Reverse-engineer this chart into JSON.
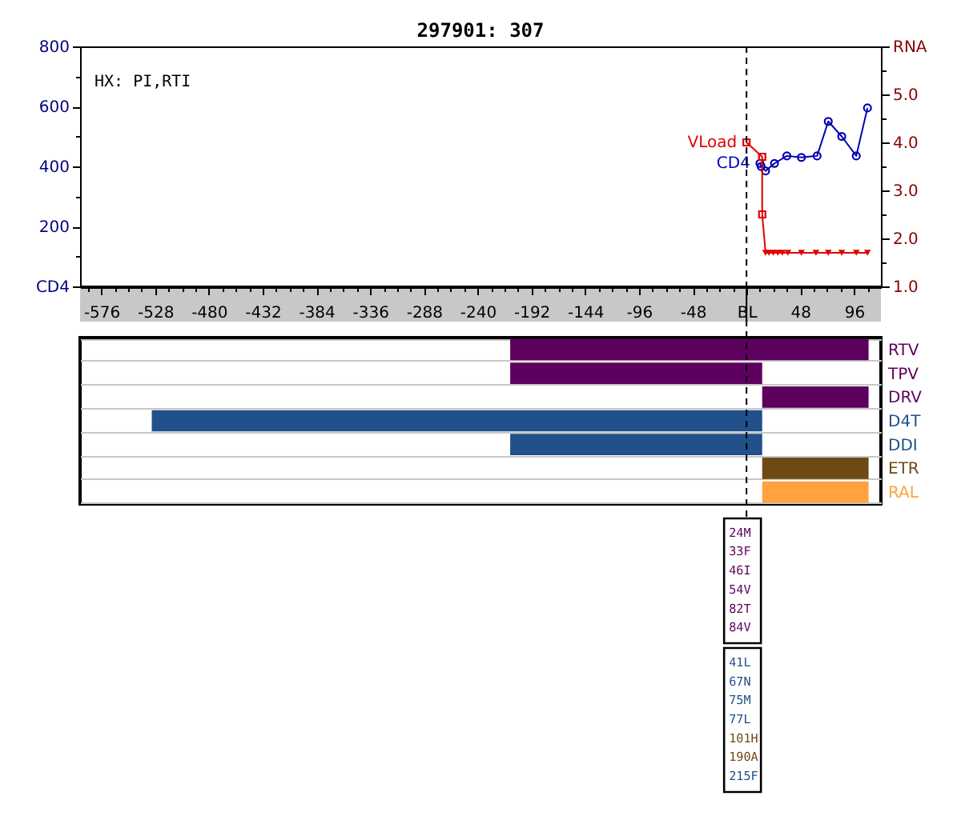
{
  "chart_data": [
    {
      "type": "line",
      "title": "297901: 307",
      "annotations": [
        "HX: PI,RTI"
      ],
      "xlim": [
        -595,
        120
      ],
      "xticks": [
        {
          "value": -588,
          "label": null
        },
        -576,
        {
          "value": -564,
          "label": null
        },
        {
          "value": -552,
          "label": null
        },
        {
          "value": -540,
          "label": null
        },
        -528,
        {
          "value": -516,
          "label": null
        },
        {
          "value": -504,
          "label": null
        },
        {
          "value": -492,
          "label": null
        },
        -480,
        {
          "value": -468,
          "label": null
        },
        {
          "value": -456,
          "label": null
        },
        {
          "value": -444,
          "label": null
        },
        -432,
        {
          "value": -420,
          "label": null
        },
        {
          "value": -408,
          "label": null
        },
        {
          "value": -396,
          "label": null
        },
        -384,
        {
          "value": -372,
          "label": null
        },
        {
          "value": -360,
          "label": null
        },
        {
          "value": -348,
          "label": null
        },
        -336,
        {
          "value": -324,
          "label": null
        },
        {
          "value": -312,
          "label": null
        },
        {
          "value": -300,
          "label": null
        },
        -288,
        {
          "value": -276,
          "label": null
        },
        {
          "value": -264,
          "label": null
        },
        {
          "value": -252,
          "label": null
        },
        -240,
        {
          "value": -228,
          "label": null
        },
        {
          "value": -216,
          "label": null
        },
        {
          "value": -204,
          "label": null
        },
        -192,
        {
          "value": -180,
          "label": null
        },
        {
          "value": -168,
          "label": null
        },
        {
          "value": -156,
          "label": null
        },
        -144,
        {
          "value": -132,
          "label": null
        },
        {
          "value": -120,
          "label": null
        },
        {
          "value": -108,
          "label": null
        },
        -96,
        {
          "value": -84,
          "label": null
        },
        {
          "value": -72,
          "label": null
        },
        {
          "value": -60,
          "label": null
        },
        -48,
        {
          "value": -36,
          "label": null
        },
        {
          "value": -24,
          "label": null
        },
        {
          "value": -12,
          "label": null
        },
        {
          "value": 0,
          "label": "BL"
        },
        {
          "value": 12,
          "label": null
        },
        {
          "value": 24,
          "label": null
        },
        {
          "value": 36,
          "label": null
        },
        48,
        {
          "value": 60,
          "label": null
        },
        {
          "value": 72,
          "label": null
        },
        {
          "value": 84,
          "label": null
        },
        96,
        {
          "value": 108,
          "label": null
        }
      ],
      "ylim": [
        0,
        800
      ],
      "yticks": [
        {
          "value": 0,
          "label": "CD4"
        },
        {
          "value": 100,
          "label": null
        },
        200,
        {
          "value": 300,
          "label": null
        },
        400,
        {
          "value": 500,
          "label": null
        },
        600,
        {
          "value": 700,
          "label": null
        },
        800
      ],
      "y2lim": [
        1,
        6
      ],
      "y2ticks": [
        {
          "value": 1,
          "label": "1.0"
        },
        {
          "value": 1.5,
          "label": null
        },
        {
          "value": 2,
          "label": "2.0"
        },
        {
          "value": 2.5,
          "label": null
        },
        {
          "value": 3,
          "label": "3.0"
        },
        {
          "value": 3.5,
          "label": null
        },
        {
          "value": 4,
          "label": "4.0"
        },
        {
          "value": 4.5,
          "label": null
        },
        {
          "value": 5,
          "label": "5.0"
        },
        {
          "value": 5.5,
          "label": null
        },
        {
          "value": 6,
          "label": "RNA"
        }
      ],
      "ref_lines": [
        {
          "axis": "x",
          "value": 0,
          "line_style": "dashed",
          "color": "#000000"
        }
      ],
      "series": [
        {
          "name": "CD4",
          "type": "line",
          "line_style": "solid",
          "color": "#0000b4",
          "marker": "circle",
          "x": [
            12,
            13,
            17,
            25,
            36,
            49,
            63,
            73,
            85,
            98,
            108
          ],
          "values": [
            410,
            400,
            385,
            410,
            435,
            430,
            435,
            550,
            500,
            435,
            595
          ]
        },
        {
          "name": "VLoad",
          "type": "line",
          "line_style": "solid",
          "axis": "y2",
          "color": "#e00000",
          "marker": "none",
          "x": [
            0,
            14,
            14,
            17,
            20,
            24,
            28,
            32,
            37,
            49,
            62,
            73,
            85,
            98,
            108
          ],
          "values": [
            4.0,
            3.7,
            2.5,
            1.7,
            1.7,
            1.7,
            1.7,
            1.7,
            1.7,
            1.7,
            1.7,
            1.7,
            1.7,
            1.7,
            1.7
          ]
        },
        {
          "type": "scatter",
          "axis": "y2",
          "color": "#e00000",
          "marker": "square",
          "x": [
            0,
            14,
            14
          ],
          "values": [
            4.0,
            3.7,
            2.5
          ]
        },
        {
          "type": "scatter",
          "axis": "y2",
          "color": "#e00000",
          "marker": "triangle",
          "x": [
            17,
            20,
            24,
            28,
            32,
            37,
            49,
            62,
            73,
            85,
            98,
            108
          ],
          "values": [
            1.7,
            1.7,
            1.7,
            1.7,
            1.7,
            1.7,
            1.7,
            1.7,
            1.7,
            1.7,
            1.7,
            1.7
          ]
        }
      ]
    },
    {
      "type": "bar",
      "orientation": "horizontal",
      "categories": [
        "RTV",
        "TPV",
        "DRV",
        "D4T",
        "DDI",
        "ETR",
        "RAL"
      ],
      "base": [
        -211,
        -211,
        14,
        -531,
        -211,
        14,
        14
      ],
      "values": [
        320,
        225,
        95,
        545,
        225,
        95,
        95
      ],
      "colors": [
        "#5e005e",
        "#5e005e",
        "#5e005e",
        "#21508a",
        "#21508a",
        "#6e4a12",
        "#ffa23f"
      ],
      "xlim": [
        -595,
        120
      ],
      "tick_labels": "y",
      "grid": "y",
      "ref_lines": [
        {
          "axis": "x",
          "value": 0,
          "line_style": "dashed",
          "color": "#000000"
        }
      ]
    },
    {
      "type": "other",
      "annotations": [
        "24M",
        "33F",
        "46I",
        "54V",
        "82T",
        "84V"
      ],
      "colors": [
        "#5e005e",
        "#5e005e",
        "#5e005e",
        "#5e005e",
        "#5e005e",
        "#5e005e"
      ]
    },
    {
      "type": "other",
      "annotations": [
        "41L",
        "67N",
        "75M",
        "77L",
        "101H",
        "190A",
        "215F"
      ],
      "colors": [
        "#21508a",
        "#21508a",
        "#21508a",
        "#21508a",
        "#6e4a12",
        "#6e4a12",
        "#21508a"
      ]
    }
  ]
}
